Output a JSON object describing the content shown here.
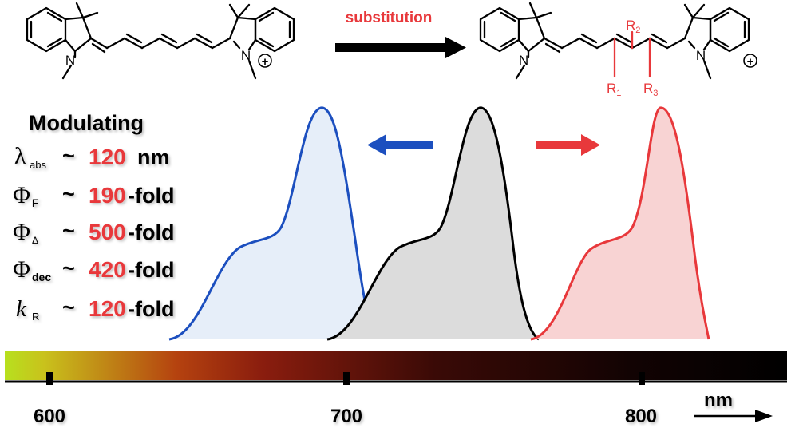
{
  "reaction": {
    "arrow_label": "substitution",
    "reactant": {
      "n_label": "N",
      "n_plus_label": "N",
      "charge": "+"
    },
    "product": {
      "n_label": "N",
      "n_plus_label": "N",
      "charge": "+",
      "r1": {
        "main": "R",
        "sub": "1"
      },
      "r2": {
        "main": "R",
        "sub": "2"
      },
      "r3": {
        "main": "R",
        "sub": "3"
      }
    }
  },
  "modulating": {
    "title": "Modulating",
    "rows": [
      {
        "symbol": "λ",
        "sub": "abs",
        "tilde": "~",
        "value": "120",
        "suffix": "nm"
      },
      {
        "symbol": "Φ",
        "sub": "F",
        "tilde": "~",
        "value": "190",
        "suffix": "-fold"
      },
      {
        "symbol": "Φ",
        "sub": "Δ",
        "tilde": "~",
        "value": "500",
        "suffix": "-fold"
      },
      {
        "symbol": "Φ",
        "sub": "dec",
        "tilde": "~",
        "value": "420",
        "suffix": "-fold"
      },
      {
        "symbol": "k",
        "sub": "R",
        "tilde": "~",
        "value": "120",
        "suffix": "-fold"
      }
    ]
  },
  "spectra": [
    {
      "name": "blue-shifted",
      "color": "#1c4fbf",
      "fill": "#e6eef9"
    },
    {
      "name": "parent",
      "color": "#000000",
      "fill": "#dcdcdc"
    },
    {
      "name": "red-shifted",
      "color": "#e8383b",
      "fill": "#f8d3d3"
    }
  ],
  "scale": {
    "ticks": [
      "600",
      "700",
      "800"
    ],
    "unit": "nm",
    "gradient_colors": [
      "#b7e01e",
      "#8a1d0e",
      "#000000"
    ]
  },
  "colors": {
    "accent_red": "#e8383b",
    "arrow_blue": "#1c4fbf",
    "arrow_red": "#e8383b"
  }
}
